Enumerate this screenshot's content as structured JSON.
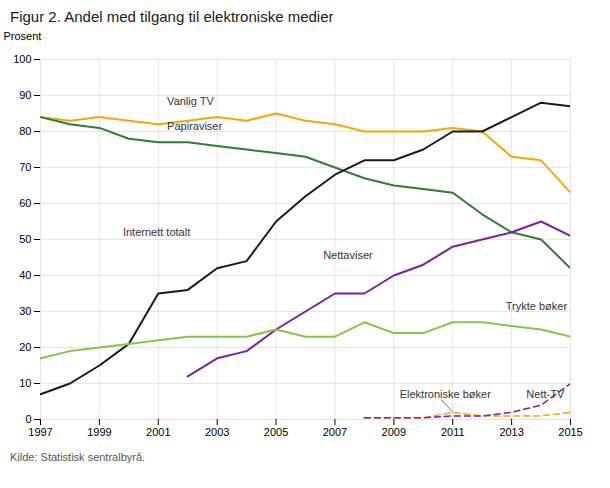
{
  "chart_data": {
    "type": "line",
    "title": "Figur 2. Andel med tilgang til elektroniske medier",
    "source": "Kilde: Statistisk sentralbyrå.",
    "ylabel": "Prosent",
    "xlim": [
      1997,
      2015
    ],
    "ylim": [
      0,
      100
    ],
    "xticks": [
      1997,
      1999,
      2001,
      2003,
      2005,
      2007,
      2009,
      2011,
      2013,
      2015
    ],
    "yticks": [
      0,
      10,
      20,
      30,
      40,
      50,
      60,
      70,
      80,
      90,
      100
    ],
    "grid": true,
    "series": [
      {
        "name": "Vanlig TV",
        "color": "#f5a800",
        "line_style": "solid",
        "x": [
          1997,
          1998,
          1999,
          2000,
          2001,
          2002,
          2003,
          2004,
          2005,
          2006,
          2007,
          2008,
          2009,
          2010,
          2011,
          2012,
          2013,
          2014,
          2015
        ],
        "values": [
          84,
          83,
          84,
          83,
          82,
          83,
          84,
          83,
          85,
          83,
          82,
          80,
          80,
          80,
          81,
          80,
          73,
          72,
          63
        ]
      },
      {
        "name": "Papiraviser",
        "color": "#2e7d32",
        "line_style": "solid",
        "x": [
          1997,
          1998,
          1999,
          2000,
          2001,
          2002,
          2003,
          2004,
          2005,
          2006,
          2007,
          2008,
          2009,
          2010,
          2011,
          2012,
          2013,
          2014,
          2015
        ],
        "values": [
          84,
          82,
          81,
          78,
          77,
          77,
          76,
          75,
          74,
          73,
          70,
          67,
          65,
          64,
          63,
          57,
          52,
          50,
          42
        ]
      },
      {
        "name": "Internett totalt",
        "color": "#1a1a1a",
        "line_style": "solid",
        "x": [
          1997,
          1998,
          1999,
          2000,
          2001,
          2002,
          2003,
          2004,
          2005,
          2006,
          2007,
          2008,
          2009,
          2010,
          2011,
          2012,
          2013,
          2014,
          2015
        ],
        "values": [
          7,
          10,
          15,
          21,
          35,
          36,
          42,
          44,
          55,
          62,
          68,
          72,
          72,
          75,
          80,
          80,
          84,
          88,
          87
        ]
      },
      {
        "name": "Nettaviser",
        "color": "#7b1fa2",
        "line_style": "solid",
        "x": [
          2002,
          2003,
          2004,
          2005,
          2006,
          2007,
          2008,
          2009,
          2010,
          2011,
          2012,
          2013,
          2014,
          2015
        ],
        "values": [
          12,
          17,
          19,
          25,
          30,
          35,
          35,
          40,
          43,
          48,
          50,
          52,
          55,
          51
        ]
      },
      {
        "name": "Trykte bøker",
        "color": "#8bc34a",
        "line_style": "solid",
        "x": [
          1997,
          1998,
          1999,
          2000,
          2001,
          2002,
          2003,
          2004,
          2005,
          2006,
          2007,
          2008,
          2009,
          2010,
          2011,
          2012,
          2013,
          2014,
          2015
        ],
        "values": [
          17,
          19,
          20,
          21,
          22,
          23,
          23,
          23,
          25,
          23,
          23,
          27,
          24,
          24,
          27,
          27,
          26,
          25,
          23
        ]
      },
      {
        "name": "Elektroniske bøker",
        "color": "#f5a800",
        "line_style": "dashed",
        "x": [
          2008,
          2009,
          2010,
          2011,
          2012,
          2013,
          2014,
          2015
        ],
        "values": [
          0.5,
          0.5,
          0.5,
          2,
          1,
          1,
          1,
          2
        ]
      },
      {
        "name": "Nett-TV",
        "color": "#7b1fa2",
        "line_style": "dashed",
        "x": [
          2008,
          2009,
          2010,
          2011,
          2012,
          2013,
          2014,
          2015
        ],
        "values": [
          0.5,
          0.5,
          0.5,
          1,
          1,
          2,
          4,
          10
        ]
      }
    ],
    "annotations": [
      {
        "text": "Vanlig TV",
        "x": 2001.3,
        "y": 87.5
      },
      {
        "text": "Papiraviser",
        "x": 2001.3,
        "y": 80.5
      },
      {
        "text": "Internett totalt",
        "x": 1999.8,
        "y": 51
      },
      {
        "text": "Nettaviser",
        "x": 2006.6,
        "y": 44.5
      },
      {
        "text": "Trykte bøker",
        "x": 2012.8,
        "y": 30.5
      },
      {
        "text": "Elektroniske bøker",
        "x": 2009.2,
        "y": 6.0,
        "line": {
          "x1": 2010.6,
          "y1": 5.5,
          "x2": 2011.0,
          "y2": 2.2
        }
      },
      {
        "text": "Nett-TV",
        "x": 2013.5,
        "y": 6.0
      }
    ]
  }
}
